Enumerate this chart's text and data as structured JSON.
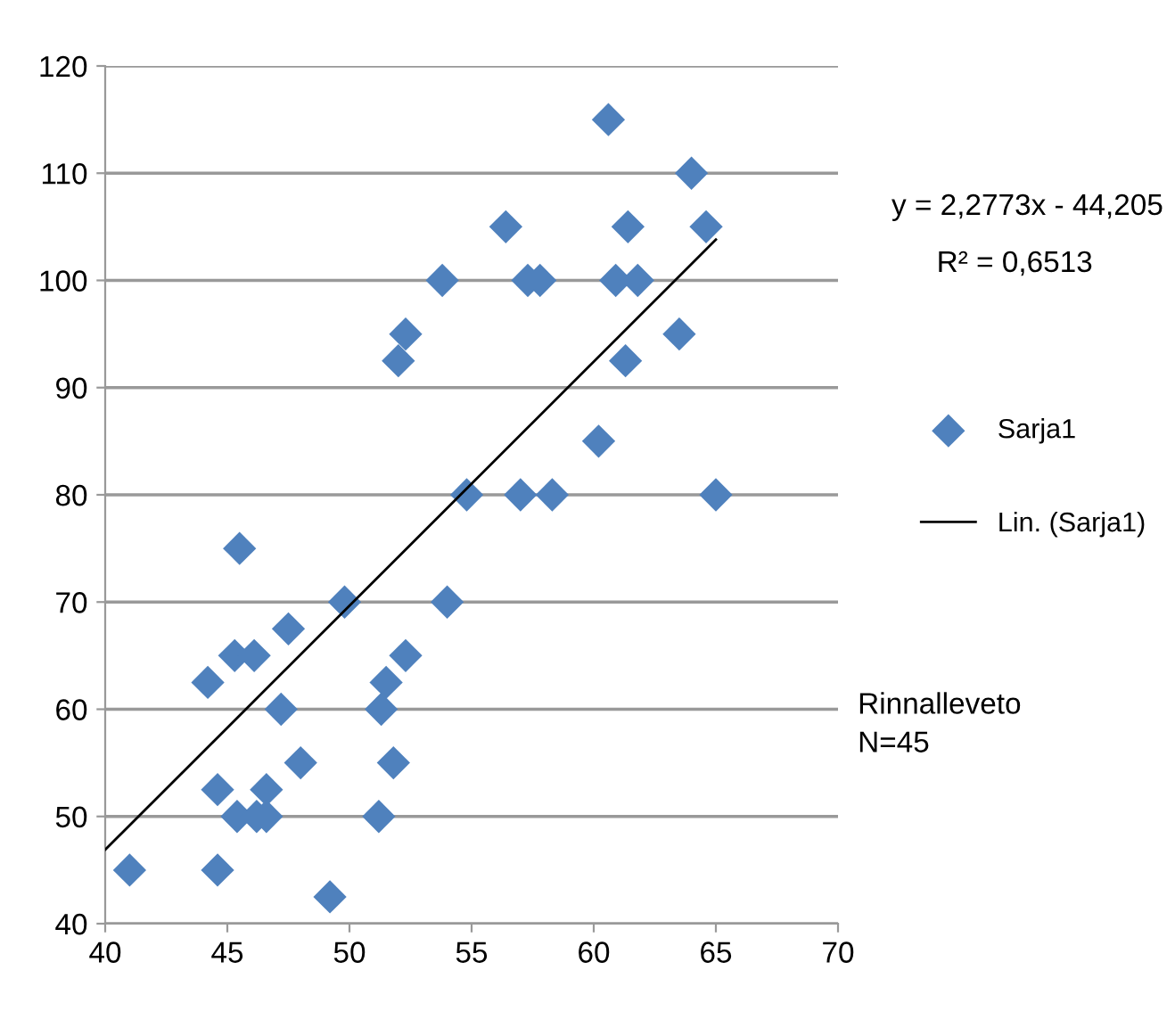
{
  "chart_data": {
    "type": "scatter",
    "xlim": [
      40,
      70
    ],
    "ylim": [
      40,
      120
    ],
    "xticks": [
      40,
      45,
      50,
      55,
      60,
      65,
      70
    ],
    "yticks": [
      40,
      50,
      60,
      70,
      80,
      90,
      100,
      110,
      120
    ],
    "grid": "y",
    "legend": "right",
    "marker": "diamond",
    "series": [
      {
        "name": "Sarja1",
        "color": "#4f81bd",
        "x": [
          41,
          44.2,
          44.6,
          44.6,
          45.3,
          45.5,
          45.4,
          46.1,
          46.2,
          46.6,
          46.6,
          47.2,
          47.5,
          48,
          49.2,
          49.8,
          51.2,
          51.3,
          51.5,
          51.8,
          52,
          52.3,
          52.3,
          53.8,
          54,
          54.8,
          56.4,
          57,
          57.3,
          57.8,
          58.3,
          60.2,
          60.6,
          60.9,
          61.3,
          61.4,
          61.8,
          63.5,
          64,
          64.6,
          65
        ],
        "values": [
          45,
          62.5,
          52.5,
          45,
          65,
          75,
          50,
          65,
          50,
          52.5,
          50,
          60,
          67.5,
          55,
          42.5,
          70,
          50,
          60,
          62.5,
          55,
          92.5,
          95,
          65,
          100,
          70,
          80,
          105,
          80,
          100,
          100,
          80,
          85,
          115,
          100,
          92.5,
          105,
          100,
          95,
          110,
          105,
          80
        ]
      },
      {
        "name": "Lin. (Sarja1)",
        "type": "line",
        "color": "#000000",
        "marker": "none",
        "x": [
          40,
          65
        ],
        "values": [
          46.9,
          103.8
        ]
      }
    ],
    "annotations": [
      "y = 2,2773x - 44,205",
      "R² = 0,6513",
      "Rinnalleveto\nN=45"
    ]
  }
}
